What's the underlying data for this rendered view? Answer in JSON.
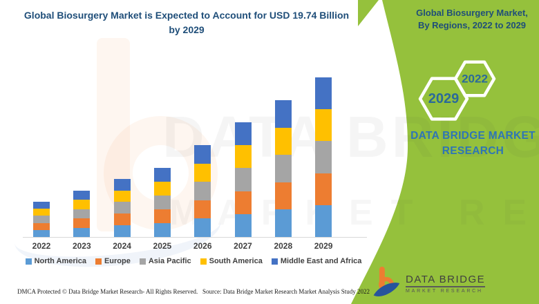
{
  "header": {
    "title": "Global Biosurgery Market is Expected to Account for USD 19.74 Billion by 2029"
  },
  "side_panel": {
    "title": "Global Biosurgery Market, By Regions, 2022 to 2029",
    "hexagon_end_year": "2029",
    "hexagon_start_year": "2022",
    "brand_text": "DATA BRIDGE MARKET RESEARCH",
    "accent_green": "#95C13C",
    "title_color": "#1F4E79",
    "brand_blue": "#2E75B6",
    "hex_year_color": "#2B6A99"
  },
  "chart_data": {
    "type": "bar",
    "stacked": true,
    "title": "Global Biosurgery Market, By Regions, 2022 to 2029",
    "unit": "USD Billion",
    "categories": [
      "2022",
      "2023",
      "2024",
      "2025",
      "2026",
      "2027",
      "2028",
      "2029"
    ],
    "series": [
      {
        "name": "North America",
        "color": "#5B9BD5",
        "values": [
          0.87,
          1.15,
          1.44,
          1.71,
          2.27,
          2.84,
          3.38,
          3.95
        ]
      },
      {
        "name": "Europe",
        "color": "#ED7D31",
        "values": [
          0.87,
          1.15,
          1.44,
          1.71,
          2.27,
          2.84,
          3.38,
          3.95
        ]
      },
      {
        "name": "Asia Pacific",
        "color": "#A5A5A5",
        "values": [
          0.87,
          1.15,
          1.44,
          1.71,
          2.27,
          2.84,
          3.38,
          3.95
        ]
      },
      {
        "name": "South America",
        "color": "#FFC000",
        "values": [
          0.87,
          1.15,
          1.44,
          1.71,
          2.27,
          2.84,
          3.38,
          3.95
        ]
      },
      {
        "name": "Middle East and Africa",
        "color": "#4472C4",
        "values": [
          0.87,
          1.15,
          1.44,
          1.71,
          2.27,
          2.84,
          3.38,
          3.95
        ]
      }
    ],
    "totals": [
      4.36,
      5.73,
      7.18,
      8.55,
      11.36,
      14.19,
      16.92,
      19.74
    ],
    "end_value_label": "USD 19.74 Billion by 2029",
    "ylim": [
      0,
      20
    ],
    "grid": false,
    "legend_position": "bottom"
  },
  "footer": {
    "left": "DMCA Protected © Data Bridge Market Research- All Rights Reserved.",
    "right": "Source: Data Bridge Market Research Market Analysis Study 2022"
  },
  "logo": {
    "title": "DATA BRIDGE",
    "subtitle": "MARKET RESEARCH"
  },
  "watermark": {
    "line1": "DATA BRIDGE",
    "line2": "MARKET RESEARCH"
  }
}
